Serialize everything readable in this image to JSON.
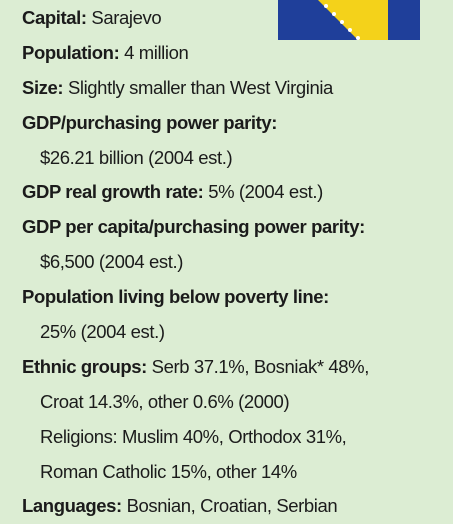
{
  "facts": [
    {
      "label": "Capital:",
      "value": "Sarajevo"
    },
    {
      "label": "Population:",
      "value": "4 million"
    },
    {
      "label": "Size:",
      "value": "Slightly smaller than West Virginia"
    },
    {
      "label": "GDP/purchasing power parity:",
      "continued": [
        "$26.21 billion (2004 est.)"
      ]
    },
    {
      "label": "GDP real growth rate:",
      "value": "5% (2004 est.)"
    },
    {
      "label": "GDP per capita/purchasing power parity:",
      "continued": [
        "$6,500 (2004 est.)"
      ]
    },
    {
      "label": "Population living below poverty line:",
      "continued": [
        "25% (2004 est.)"
      ]
    },
    {
      "label": "Ethnic groups:",
      "value": "Serb 37.1%, Bosniak* 48%,",
      "continued": [
        "Croat 14.3%, other 0.6% (2000)",
        "Religions: Muslim 40%, Orthodox 31%,",
        "Roman Catholic 15%, other 14%"
      ]
    },
    {
      "label": "Languages:",
      "value": "Bosnian, Croatian, Serbian"
    }
  ]
}
